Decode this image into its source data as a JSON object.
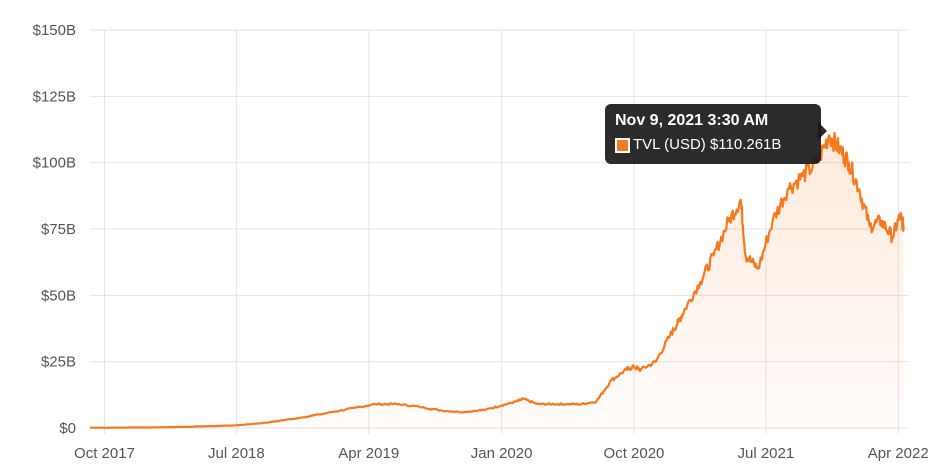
{
  "chart_data": {
    "type": "area",
    "title": "",
    "xlabel": "",
    "ylabel": "",
    "x_ticks": [
      "Oct 2017",
      "Jul 2018",
      "Apr 2019",
      "Jan 2020",
      "Oct 2020",
      "Jul 2021",
      "Apr 2022"
    ],
    "y_ticks": [
      "$0",
      "$25B",
      "$50B",
      "$75B",
      "$100B",
      "$125B",
      "$150B"
    ],
    "ylim": [
      0,
      150
    ],
    "xlim": [
      "2017-09-01",
      "2022-04-15"
    ],
    "grid": true,
    "line_color": "#f7781d",
    "fill_color": "#f7781d",
    "series": [
      {
        "name": "TVL (USD)",
        "x": [
          "2017-09-01",
          "2018-01-01",
          "2018-04-01",
          "2018-07-01",
          "2018-09-01",
          "2018-11-15",
          "2019-01-15",
          "2019-03-01",
          "2019-04-15",
          "2019-06-01",
          "2019-07-15",
          "2019-09-01",
          "2019-10-15",
          "2019-12-01",
          "2020-01-01",
          "2020-02-01",
          "2020-02-15",
          "2020-03-15",
          "2020-04-15",
          "2020-05-15",
          "2020-06-15",
          "2020-07-15",
          "2020-08-15",
          "2020-09-15",
          "2020-10-01",
          "2020-10-15",
          "2020-11-15",
          "2020-12-15",
          "2021-01-01",
          "2021-01-15",
          "2021-02-15",
          "2021-03-15",
          "2021-04-15",
          "2021-05-10",
          "2021-05-20",
          "2021-06-15",
          "2021-07-15",
          "2021-08-15",
          "2021-09-15",
          "2021-10-15",
          "2021-11-09",
          "2021-12-01",
          "2021-12-20",
          "2022-01-10",
          "2022-02-01",
          "2022-02-25",
          "2022-03-20",
          "2022-04-05",
          "2022-04-12"
        ],
        "values": [
          0.1,
          0.2,
          0.5,
          1,
          2,
          4,
          6,
          7.5,
          9,
          9,
          8,
          6.5,
          6,
          7,
          8.5,
          10,
          11,
          9,
          9,
          9,
          9,
          10,
          18,
          22,
          23,
          22,
          25,
          35,
          40,
          45,
          55,
          65,
          78,
          86,
          65,
          60,
          78,
          90,
          95,
          100,
          110.261,
          105,
          100,
          90,
          76,
          78,
          72,
          80,
          76
        ]
      }
    ],
    "tooltip": {
      "title": "Nov 9, 2021 3:30 AM",
      "series_label": "TVL (USD)",
      "value_label": "$110.261B",
      "x": "2021-11-09",
      "y": 110.261
    }
  }
}
